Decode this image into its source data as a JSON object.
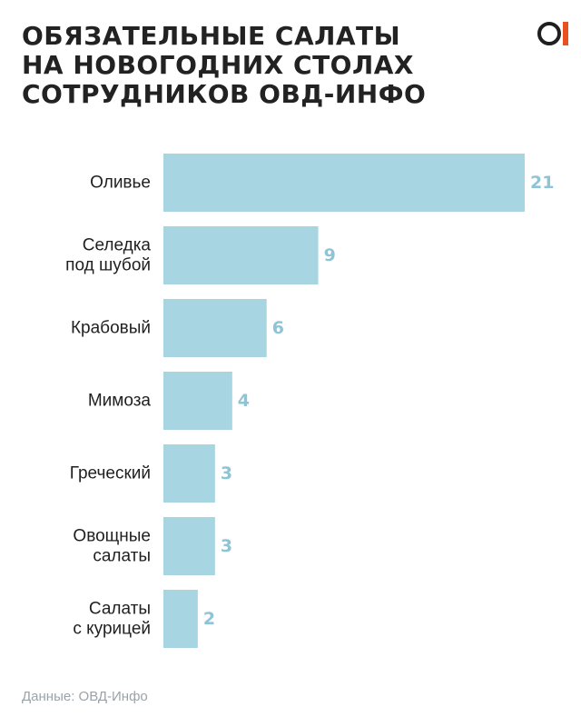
{
  "title_lines": [
    "ОБЯЗАТЕЛЬНЫЕ САЛАТЫ",
    "НА НОВОГОДНИХ СТОЛАХ",
    "СОТРУДНИКОВ ОВД-ИНФО"
  ],
  "logo_icon": "ovd-info-logo-icon",
  "source": "Данные: ОВД-Инфо",
  "colors": {
    "bar": "#a8d5e2",
    "value_label": "#8fc3d6",
    "accent": "#e8521e"
  },
  "chart_data": {
    "type": "bar",
    "orientation": "horizontal",
    "categories": [
      [
        "Оливье"
      ],
      [
        "Селедка",
        "под шубой"
      ],
      [
        "Крабовый"
      ],
      [
        "Мимоза"
      ],
      [
        "Греческий"
      ],
      [
        "Овощные",
        "салаты"
      ],
      [
        "Салаты",
        "с курицей"
      ]
    ],
    "values": [
      21,
      9,
      6,
      4,
      3,
      3,
      2
    ],
    "xlim": [
      0,
      21
    ],
    "grid": false,
    "legend": "none"
  }
}
